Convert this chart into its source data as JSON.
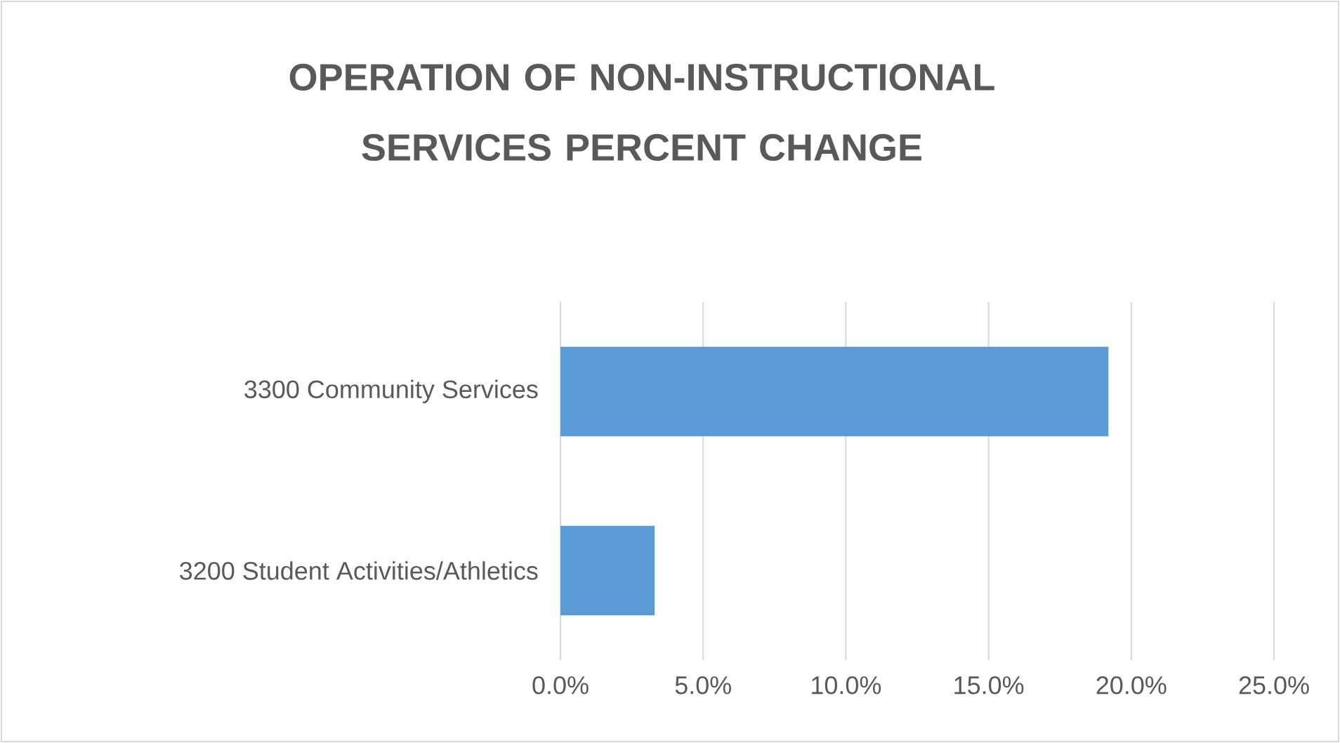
{
  "chart_data": {
    "type": "bar",
    "orientation": "horizontal",
    "title": "OPERATION OF NON-INSTRUCTIONAL SERVICES PERCENT CHANGE",
    "categories": [
      "3300 Community Services",
      "3200 Student Activities/Athletics"
    ],
    "values": [
      19.2,
      3.3
    ],
    "color": "#5b9bd5",
    "xlim": [
      0,
      25
    ],
    "xticks": [
      {
        "value": 0,
        "label": "0.0%"
      },
      {
        "value": 5,
        "label": "5.0%"
      },
      {
        "value": 10,
        "label": "10.0%"
      },
      {
        "value": 15,
        "label": "15.0%"
      },
      {
        "value": 20,
        "label": "20.0%"
      },
      {
        "value": 25,
        "label": "25.0%"
      }
    ],
    "grid": "x"
  }
}
